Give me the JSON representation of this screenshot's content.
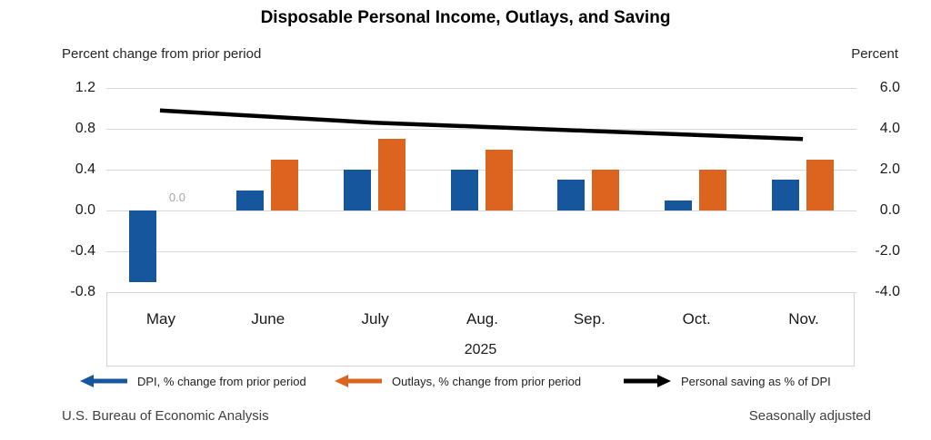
{
  "header": {
    "title": "Disposable Personal Income, Outlays, and Saving"
  },
  "axes": {
    "left_caption": "Percent change from prior period",
    "right_caption": "Percent",
    "left_ticks": [
      "1.2",
      "0.8",
      "0.4",
      "0.0",
      "-0.4",
      "-0.8"
    ],
    "right_ticks": [
      "6.0",
      "4.0",
      "2.0",
      "0.0",
      "-2.0",
      "-4.0"
    ]
  },
  "chart_data": {
    "type": "bar+line combo",
    "categories": [
      "May",
      "June",
      "July",
      "Aug.",
      "Sep.",
      "Oct.",
      "Nov."
    ],
    "year_label": "2025",
    "left_axis": {
      "label": "Percent change from prior period",
      "min": -0.8,
      "max": 1.2,
      "step": 0.4
    },
    "right_axis": {
      "label": "Percent",
      "min": -4.0,
      "max": 6.0,
      "step": 2.0
    },
    "grid": true,
    "legend_position": "bottom",
    "series": [
      {
        "name": "DPI, % change from prior period",
        "type": "bar",
        "axis": "left",
        "color": "#15569C",
        "values": [
          -0.7,
          0.2,
          0.4,
          0.4,
          0.3,
          0.1,
          0.3
        ]
      },
      {
        "name": "Outlays, % change from prior period",
        "type": "bar",
        "axis": "left",
        "color": "#DC641E",
        "values": [
          0.0,
          0.5,
          0.7,
          0.6,
          0.4,
          0.4,
          0.5
        ]
      },
      {
        "name": "Personal saving as % of DPI",
        "type": "line",
        "axis": "right",
        "color": "#000000",
        "values": [
          4.9,
          4.6,
          4.3,
          4.1,
          3.9,
          3.7,
          3.5
        ]
      }
    ],
    "annotations": [
      {
        "text": "0.0",
        "category": "May",
        "series_index": 1,
        "color": "#A6A6A6"
      }
    ]
  },
  "legend": {
    "items": [
      {
        "series_index": 0,
        "arrow_direction": "left"
      },
      {
        "series_index": 1,
        "arrow_direction": "left"
      },
      {
        "series_index": 2,
        "arrow_direction": "right"
      }
    ]
  },
  "footer": {
    "source": "U.S. Bureau of Economic Analysis",
    "note": "Seasonally adjusted"
  }
}
